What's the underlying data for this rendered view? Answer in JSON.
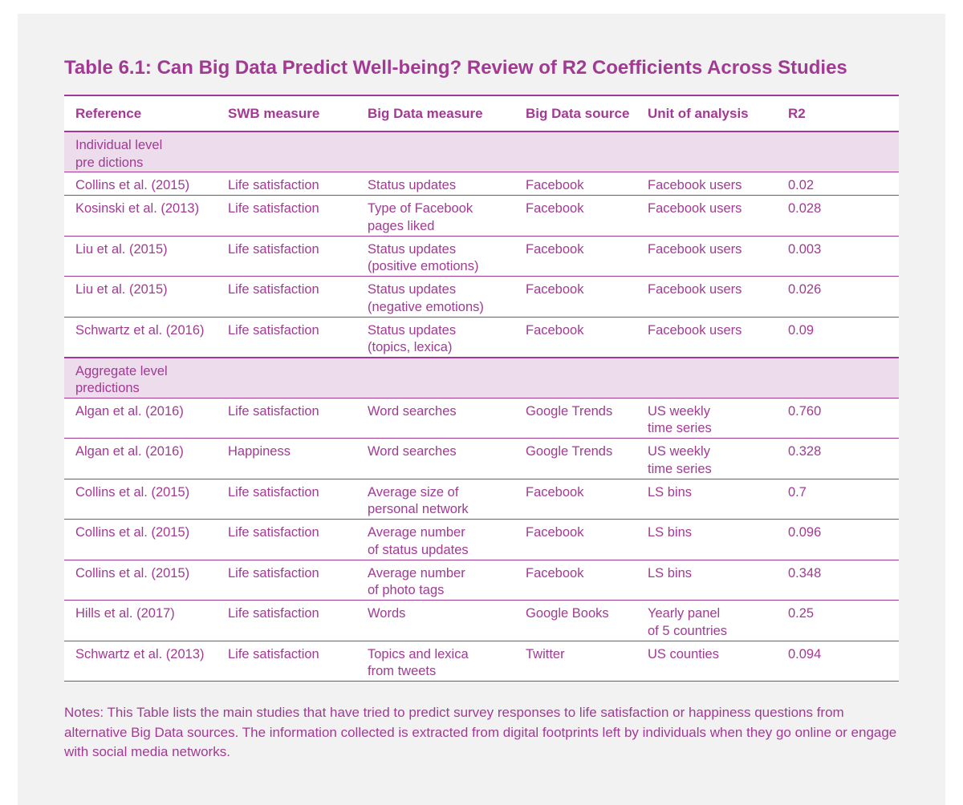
{
  "title": "Table 6.1: Can Big Data Predict Well-being? Review of R2 Coefficients Across Studies",
  "columns": [
    "Reference",
    "SWB measure",
    "Big Data measure",
    "Big Data source",
    "Unit of analysis",
    "R2"
  ],
  "sections": [
    {
      "label": "Individual level\npre  dictions",
      "rows": [
        {
          "ref": "Collins et al. (2015)",
          "swb": "Life satisfaction",
          "measure": "Status updates",
          "source": "Facebook",
          "unit": "Facebook users",
          "r2": "0.02"
        },
        {
          "ref": "Kosinski et al. (2013)",
          "swb": "Life satisfaction",
          "measure": "Type of Facebook\npages liked",
          "source": "Facebook",
          "unit": "Facebook users",
          "r2": "0.028"
        },
        {
          "ref": "Liu et al. (2015)",
          "swb": "Life satisfaction",
          "measure": "Status updates\n(positive emotions)",
          "source": "Facebook",
          "unit": "Facebook users",
          "r2": "0.003"
        },
        {
          "ref": "Liu et al. (2015)",
          "swb": "Life satisfaction",
          "measure": "Status updates\n(negative emotions)",
          "source": "Facebook",
          "unit": "Facebook users",
          "r2": "0.026"
        },
        {
          "ref": "Schwartz et al. (2016)",
          "swb": "Life satisfaction",
          "measure": "Status updates\n(topics, lexica)",
          "source": "Facebook",
          "unit": "Facebook users",
          "r2": "0.09"
        }
      ]
    },
    {
      "label": "Aggregate level\npredictions",
      "rows": [
        {
          "ref": "Algan et al. (2016)",
          "swb": "Life satisfaction",
          "measure": "Word searches",
          "source": "Google Trends",
          "unit": "US weekly\ntime series",
          "r2": "0.760"
        },
        {
          "ref": "Algan et al. (2016)",
          "swb": "Happiness",
          "measure": "Word searches",
          "source": "Google Trends",
          "unit": "US weekly\ntime series",
          "r2": "0.328"
        },
        {
          "ref": "Collins et al. (2015)",
          "swb": "Life satisfaction",
          "measure": "Average size of\npersonal network",
          "source": "Facebook",
          "unit": "LS bins",
          "r2": "0.7"
        },
        {
          "ref": "Collins et al. (2015)",
          "swb": "Life satisfaction",
          "measure": "Average number\nof status updates",
          "source": "Facebook",
          "unit": "LS bins",
          "r2": "0.096"
        },
        {
          "ref": "Collins et al. (2015)",
          "swb": "Life satisfaction",
          "measure": "Average number\nof photo tags",
          "source": "Facebook",
          "unit": "LS bins",
          "r2": "0.348"
        },
        {
          "ref": "Hills et al. (2017)",
          "swb": "Life satisfaction",
          "measure": "Words",
          "source": "Google Books",
          "unit": "Yearly panel\nof 5 countries",
          "r2": "0.25"
        },
        {
          "ref": "Schwartz et al. (2013)",
          "swb": "Life satisfaction",
          "measure": "Topics and lexica\nfrom tweets",
          "source": "Twitter",
          "unit": "US counties",
          "r2": "0.094"
        }
      ]
    }
  ],
  "notes": "Notes: This Table lists the main studies that have tried to predict survey responses to life satisfaction or happiness questions from alternative Big Data sources. The information collected is extracted from digital footprints left by individuals when they go online or engage with social media networks."
}
